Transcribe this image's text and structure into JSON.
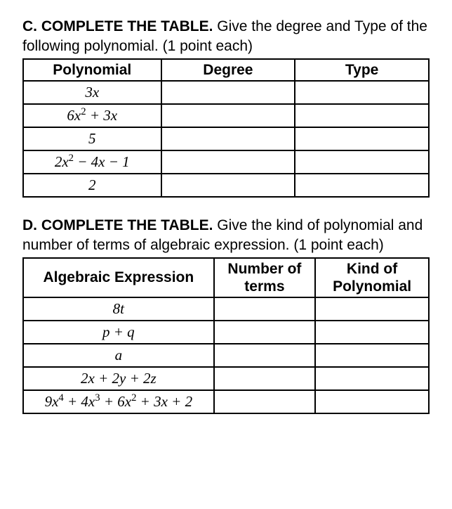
{
  "sectionC": {
    "label": "C. COMPLETE THE TABLE.",
    "instruction": " Give the degree and Type of the following polynomial. (1 point each)",
    "table": {
      "headers": [
        "Polynomial",
        "Degree",
        "Type"
      ],
      "rows": [
        {
          "poly_html": "3<i>x</i>",
          "degree": "",
          "type": ""
        },
        {
          "poly_html": "6<i>x</i><sup>2</sup> + 3<i>x</i>",
          "degree": "",
          "type": ""
        },
        {
          "poly_html": "5",
          "degree": "",
          "type": ""
        },
        {
          "poly_html": "2<i>x</i><sup>2</sup> − 4<i>x</i> − 1",
          "degree": "",
          "type": ""
        },
        {
          "poly_html": "2",
          "degree": "",
          "type": ""
        }
      ],
      "col_widths_pct": [
        34,
        33,
        33
      ],
      "border_color": "#000000",
      "background_color": "#ffffff",
      "header_fontsize": 21,
      "cell_fontsize": 21
    }
  },
  "sectionD": {
    "label": "D. COMPLETE THE TABLE.",
    "instruction": " Give the kind of polynomial and number of terms of algebraic expression. (1 point each)",
    "table": {
      "headers": [
        "Algebraic Expression",
        "Number of terms",
        "Kind of Polynomial"
      ],
      "rows": [
        {
          "expr_html": "8<i>t</i>",
          "nterms": "",
          "kind": ""
        },
        {
          "expr_html": "<i>p</i> + <i>q</i>",
          "nterms": "",
          "kind": ""
        },
        {
          "expr_html": "<i>a</i>",
          "nterms": "",
          "kind": ""
        },
        {
          "expr_html": "2<i>x</i> + 2<i>y</i> + 2<i>z</i>",
          "nterms": "",
          "kind": ""
        },
        {
          "expr_html": "9<i>x</i><sup>4</sup> + 4<i>x</i><sup>3</sup> + 6<i>x</i><sup>2</sup> + 3<i>x</i> + 2",
          "nterms": "",
          "kind": ""
        }
      ],
      "col_widths_pct": [
        47,
        25,
        28
      ],
      "border_color": "#000000",
      "background_color": "#ffffff",
      "header_fontsize": 21,
      "cell_fontsize": 21
    }
  },
  "typography": {
    "heading_font": "Arial",
    "math_font": "Cambria Math / Times New Roman",
    "text_color": "#000000",
    "page_background": "#ffffff"
  }
}
